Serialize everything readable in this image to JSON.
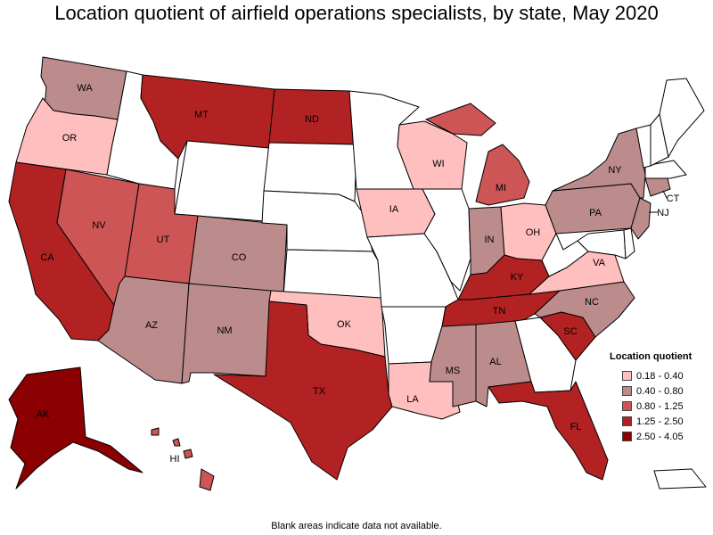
{
  "title": "Location quotient of airfield operations specialists, by state, May 2020",
  "footnote": "Blank areas indicate data not available.",
  "legend": {
    "title": "Location quotient",
    "items": [
      {
        "label": "0.18 - 0.40",
        "color": "#ffbfbf"
      },
      {
        "label": "0.40 - 0.80",
        "color": "#bc8c8c"
      },
      {
        "label": "0.80 - 1.25",
        "color": "#cd5555"
      },
      {
        "label": "1.25 - 2.50",
        "color": "#b22222"
      },
      {
        "label": "2.50 - 4.05",
        "color": "#8b0000"
      }
    ]
  },
  "colors": {
    "none": "#ffffff",
    "q1": "#ffbfbf",
    "q2": "#bc8c8c",
    "q3": "#cd5555",
    "q4": "#b22222",
    "q5": "#8b0000"
  },
  "states": {
    "WA": {
      "label": "WA",
      "class": "q2"
    },
    "OR": {
      "label": "OR",
      "class": "q1"
    },
    "CA": {
      "label": "CA",
      "class": "q4"
    },
    "NV": {
      "label": "NV",
      "class": "q3"
    },
    "ID": {
      "label": "",
      "class": "none"
    },
    "MT": {
      "label": "MT",
      "class": "q4"
    },
    "WY": {
      "label": "",
      "class": "none"
    },
    "UT": {
      "label": "UT",
      "class": "q3"
    },
    "AZ": {
      "label": "AZ",
      "class": "q2"
    },
    "CO": {
      "label": "CO",
      "class": "q2"
    },
    "NM": {
      "label": "NM",
      "class": "q2"
    },
    "ND": {
      "label": "ND",
      "class": "q4"
    },
    "SD": {
      "label": "",
      "class": "none"
    },
    "NE": {
      "label": "",
      "class": "none"
    },
    "KS": {
      "label": "",
      "class": "none"
    },
    "OK": {
      "label": "OK",
      "class": "q1"
    },
    "TX": {
      "label": "TX",
      "class": "q4"
    },
    "MN": {
      "label": "",
      "class": "none"
    },
    "IA": {
      "label": "IA",
      "class": "q1"
    },
    "MO": {
      "label": "",
      "class": "none"
    },
    "AR": {
      "label": "",
      "class": "none"
    },
    "LA": {
      "label": "LA",
      "class": "q1"
    },
    "WI": {
      "label": "WI",
      "class": "q1"
    },
    "IL": {
      "label": "",
      "class": "none"
    },
    "MI": {
      "label": "MI",
      "class": "q3"
    },
    "IN": {
      "label": "IN",
      "class": "q2"
    },
    "OH": {
      "label": "OH",
      "class": "q1"
    },
    "KY": {
      "label": "KY",
      "class": "q4"
    },
    "TN": {
      "label": "TN",
      "class": "q4"
    },
    "MS": {
      "label": "MS",
      "class": "q2"
    },
    "AL": {
      "label": "AL",
      "class": "q2"
    },
    "GA": {
      "label": "",
      "class": "none"
    },
    "FL": {
      "label": "FL",
      "class": "q4"
    },
    "SC": {
      "label": "SC",
      "class": "q4"
    },
    "NC": {
      "label": "NC",
      "class": "q2"
    },
    "VA": {
      "label": "VA",
      "class": "q1"
    },
    "WV": {
      "label": "",
      "class": "none"
    },
    "PA": {
      "label": "PA",
      "class": "q2"
    },
    "NY": {
      "label": "NY",
      "class": "q2"
    },
    "NJ": {
      "label": "NJ",
      "class": "q2"
    },
    "CT": {
      "label": "CT",
      "class": "q2"
    },
    "MD": {
      "label": "",
      "class": "none"
    },
    "DE": {
      "label": "",
      "class": "none"
    },
    "VT": {
      "label": "",
      "class": "none"
    },
    "NH": {
      "label": "",
      "class": "none"
    },
    "ME": {
      "label": "",
      "class": "none"
    },
    "MA": {
      "label": "",
      "class": "none"
    },
    "AK": {
      "label": "AK",
      "class": "q5"
    },
    "HI": {
      "label": "HI",
      "class": "q3"
    },
    "PR": {
      "label": "",
      "class": "none"
    }
  }
}
